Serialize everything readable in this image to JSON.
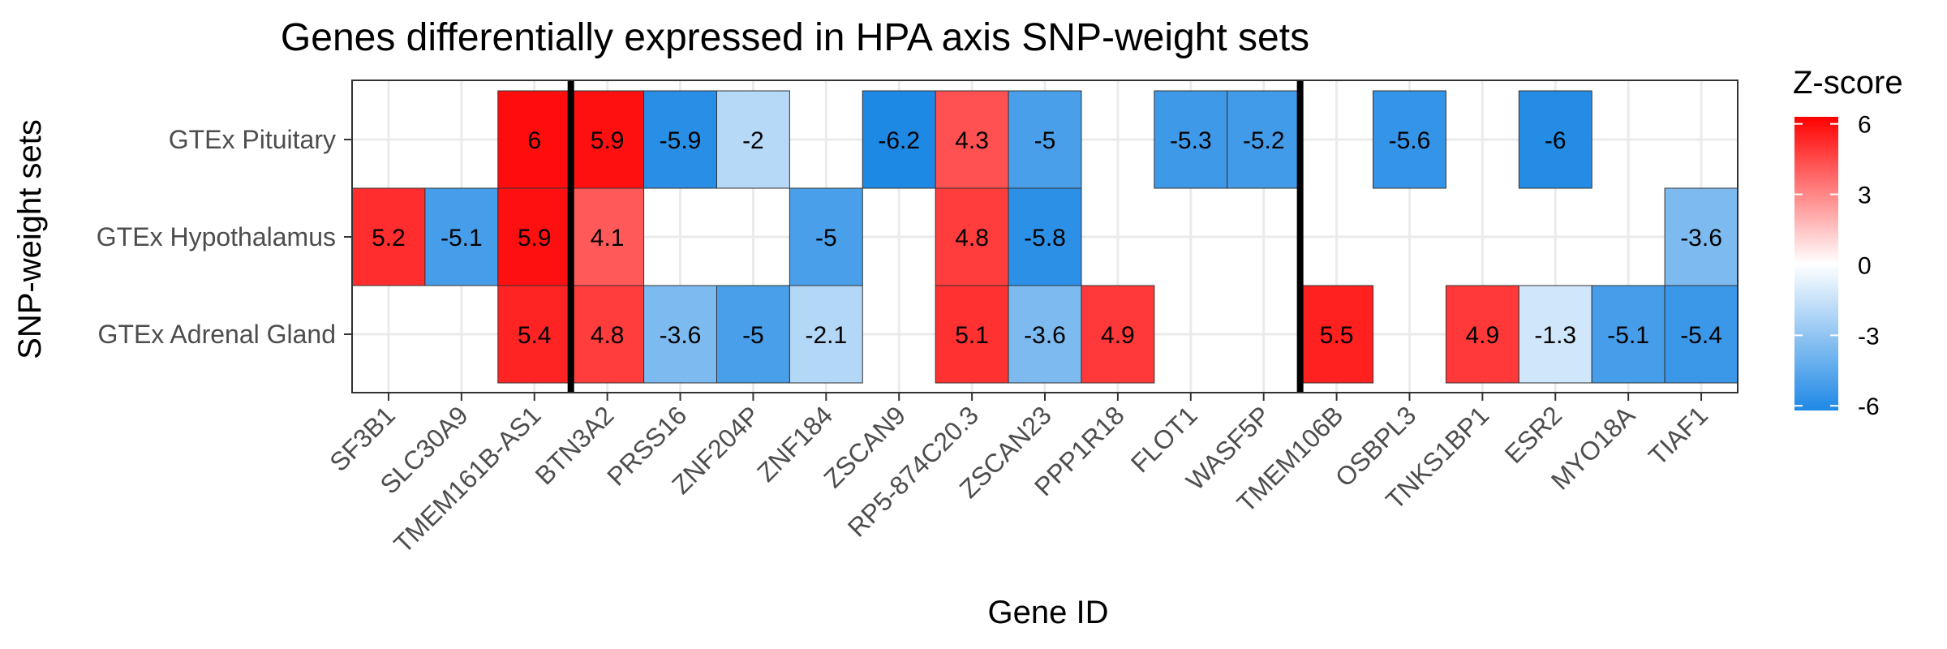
{
  "chart_data": {
    "type": "heatmap",
    "title": "Genes differentially expressed in HPA axis SNP-weight sets",
    "xlabel": "Gene ID",
    "ylabel": "SNP-weight sets",
    "x_categories": [
      "SF3B1",
      "SLC30A9",
      "TMEM161B-AS1",
      "BTN3A2",
      "PRSS16",
      "ZNF204P",
      "ZNF184",
      "ZSCAN9",
      "RP5-874C20.3",
      "ZSCAN23",
      "PPP1R18",
      "FLOT1",
      "WASF5P",
      "TMEM106B",
      "OSBPL3",
      "TNKS1BP1",
      "ESR2",
      "MYO18A",
      "TIAF1"
    ],
    "y_categories": [
      "GTEx Pituitary",
      "GTEx Hypothalamus",
      "GTEx Adrenal Gland"
    ],
    "cells": [
      {
        "x": "TMEM161B-AS1",
        "y": "GTEx Pituitary",
        "value": 6,
        "label": "6"
      },
      {
        "x": "BTN3A2",
        "y": "GTEx Pituitary",
        "value": 5.9,
        "label": "5.9"
      },
      {
        "x": "PRSS16",
        "y": "GTEx Pituitary",
        "value": -5.9,
        "label": "-5.9"
      },
      {
        "x": "ZNF204P",
        "y": "GTEx Pituitary",
        "value": -2,
        "label": "-2"
      },
      {
        "x": "ZSCAN9",
        "y": "GTEx Pituitary",
        "value": -6.2,
        "label": "-6.2"
      },
      {
        "x": "RP5-874C20.3",
        "y": "GTEx Pituitary",
        "value": 4.3,
        "label": "4.3"
      },
      {
        "x": "ZSCAN23",
        "y": "GTEx Pituitary",
        "value": -5,
        "label": "-5"
      },
      {
        "x": "FLOT1",
        "y": "GTEx Pituitary",
        "value": -5.3,
        "label": "-5.3"
      },
      {
        "x": "WASF5P",
        "y": "GTEx Pituitary",
        "value": -5.2,
        "label": "-5.2"
      },
      {
        "x": "OSBPL3",
        "y": "GTEx Pituitary",
        "value": -5.6,
        "label": "-5.6"
      },
      {
        "x": "ESR2",
        "y": "GTEx Pituitary",
        "value": -6,
        "label": "-6"
      },
      {
        "x": "SF3B1",
        "y": "GTEx Hypothalamus",
        "value": 5.2,
        "label": "5.2"
      },
      {
        "x": "SLC30A9",
        "y": "GTEx Hypothalamus",
        "value": -5.1,
        "label": "-5.1"
      },
      {
        "x": "TMEM161B-AS1",
        "y": "GTEx Hypothalamus",
        "value": 5.9,
        "label": "5.9"
      },
      {
        "x": "BTN3A2",
        "y": "GTEx Hypothalamus",
        "value": 4.1,
        "label": "4.1"
      },
      {
        "x": "ZNF184",
        "y": "GTEx Hypothalamus",
        "value": -5,
        "label": "-5"
      },
      {
        "x": "RP5-874C20.3",
        "y": "GTEx Hypothalamus",
        "value": 4.8,
        "label": "4.8"
      },
      {
        "x": "ZSCAN23",
        "y": "GTEx Hypothalamus",
        "value": -5.8,
        "label": "-5.8"
      },
      {
        "x": "TIAF1",
        "y": "GTEx Hypothalamus",
        "value": -3.6,
        "label": "-3.6"
      },
      {
        "x": "TMEM161B-AS1",
        "y": "GTEx Adrenal Gland",
        "value": 5.4,
        "label": "5.4"
      },
      {
        "x": "BTN3A2",
        "y": "GTEx Adrenal Gland",
        "value": 4.8,
        "label": "4.8"
      },
      {
        "x": "PRSS16",
        "y": "GTEx Adrenal Gland",
        "value": -3.6,
        "label": "-3.6"
      },
      {
        "x": "ZNF204P",
        "y": "GTEx Adrenal Gland",
        "value": -5,
        "label": "-5"
      },
      {
        "x": "ZNF184",
        "y": "GTEx Adrenal Gland",
        "value": -2.1,
        "label": "-2.1"
      },
      {
        "x": "RP5-874C20.3",
        "y": "GTEx Adrenal Gland",
        "value": 5.1,
        "label": "5.1"
      },
      {
        "x": "ZSCAN23",
        "y": "GTEx Adrenal Gland",
        "value": -3.6,
        "label": "-3.6"
      },
      {
        "x": "PPP1R18",
        "y": "GTEx Adrenal Gland",
        "value": 4.9,
        "label": "4.9"
      },
      {
        "x": "TMEM106B",
        "y": "GTEx Adrenal Gland",
        "value": 5.5,
        "label": "5.5"
      },
      {
        "x": "TNKS1BP1",
        "y": "GTEx Adrenal Gland",
        "value": 4.9,
        "label": "4.9"
      },
      {
        "x": "ESR2",
        "y": "GTEx Adrenal Gland",
        "value": -1.3,
        "label": "-1.3"
      },
      {
        "x": "MYO18A",
        "y": "GTEx Adrenal Gland",
        "value": -5.1,
        "label": "-5.1"
      },
      {
        "x": "TIAF1",
        "y": "GTEx Adrenal Gland",
        "value": -5.4,
        "label": "-5.4"
      }
    ],
    "separators_after": [
      "TMEM161B-AS1",
      "WASF5P"
    ],
    "legend": {
      "title": "Z-score",
      "placement": "right",
      "ticks": [
        6,
        3,
        0,
        -3,
        -6
      ],
      "tick_labels": [
        "6",
        "3",
        "0",
        "-3",
        "-6"
      ],
      "range": [
        -6.2,
        6.3
      ],
      "low_color": "#1e88e5",
      "mid_color": "#ffffff",
      "high_color": "#ff0000"
    },
    "grid": true
  }
}
